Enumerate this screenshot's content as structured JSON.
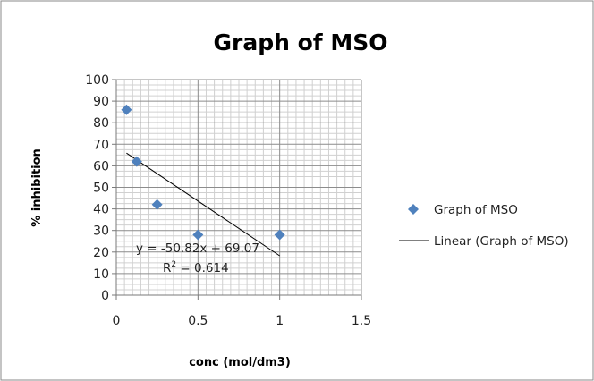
{
  "chart_data": {
    "type": "scatter",
    "title": "Graph of MSO",
    "xlabel": "conc (mol/dm3)",
    "ylabel": "% inhibition",
    "xlim": [
      0,
      1.5
    ],
    "ylim": [
      0,
      100
    ],
    "xticks": [
      "0",
      "0.5",
      "1",
      "1.5"
    ],
    "yticks": [
      "0",
      "10",
      "20",
      "30",
      "40",
      "50",
      "60",
      "70",
      "80",
      "90",
      "100"
    ],
    "grid": true,
    "legend_position": "right",
    "series": [
      {
        "name": "Graph of MSO",
        "kind": "scatter",
        "marker": "diamond",
        "color": "#4f81bd",
        "points": [
          {
            "x": 0.0625,
            "y": 86
          },
          {
            "x": 0.125,
            "y": 62
          },
          {
            "x": 0.25,
            "y": 42
          },
          {
            "x": 0.5,
            "y": 28
          },
          {
            "x": 1.0,
            "y": 28
          }
        ]
      },
      {
        "name": "Linear (Graph of MSO)",
        "kind": "trendline",
        "color": "#000000",
        "slope": -50.82,
        "intercept": 69.07
      }
    ],
    "annotations": {
      "equation": "y = -50.82x + 69.07",
      "r2_prefix": "R",
      "r2_sup": "2",
      "r2_suffix": " = 0.614"
    }
  }
}
